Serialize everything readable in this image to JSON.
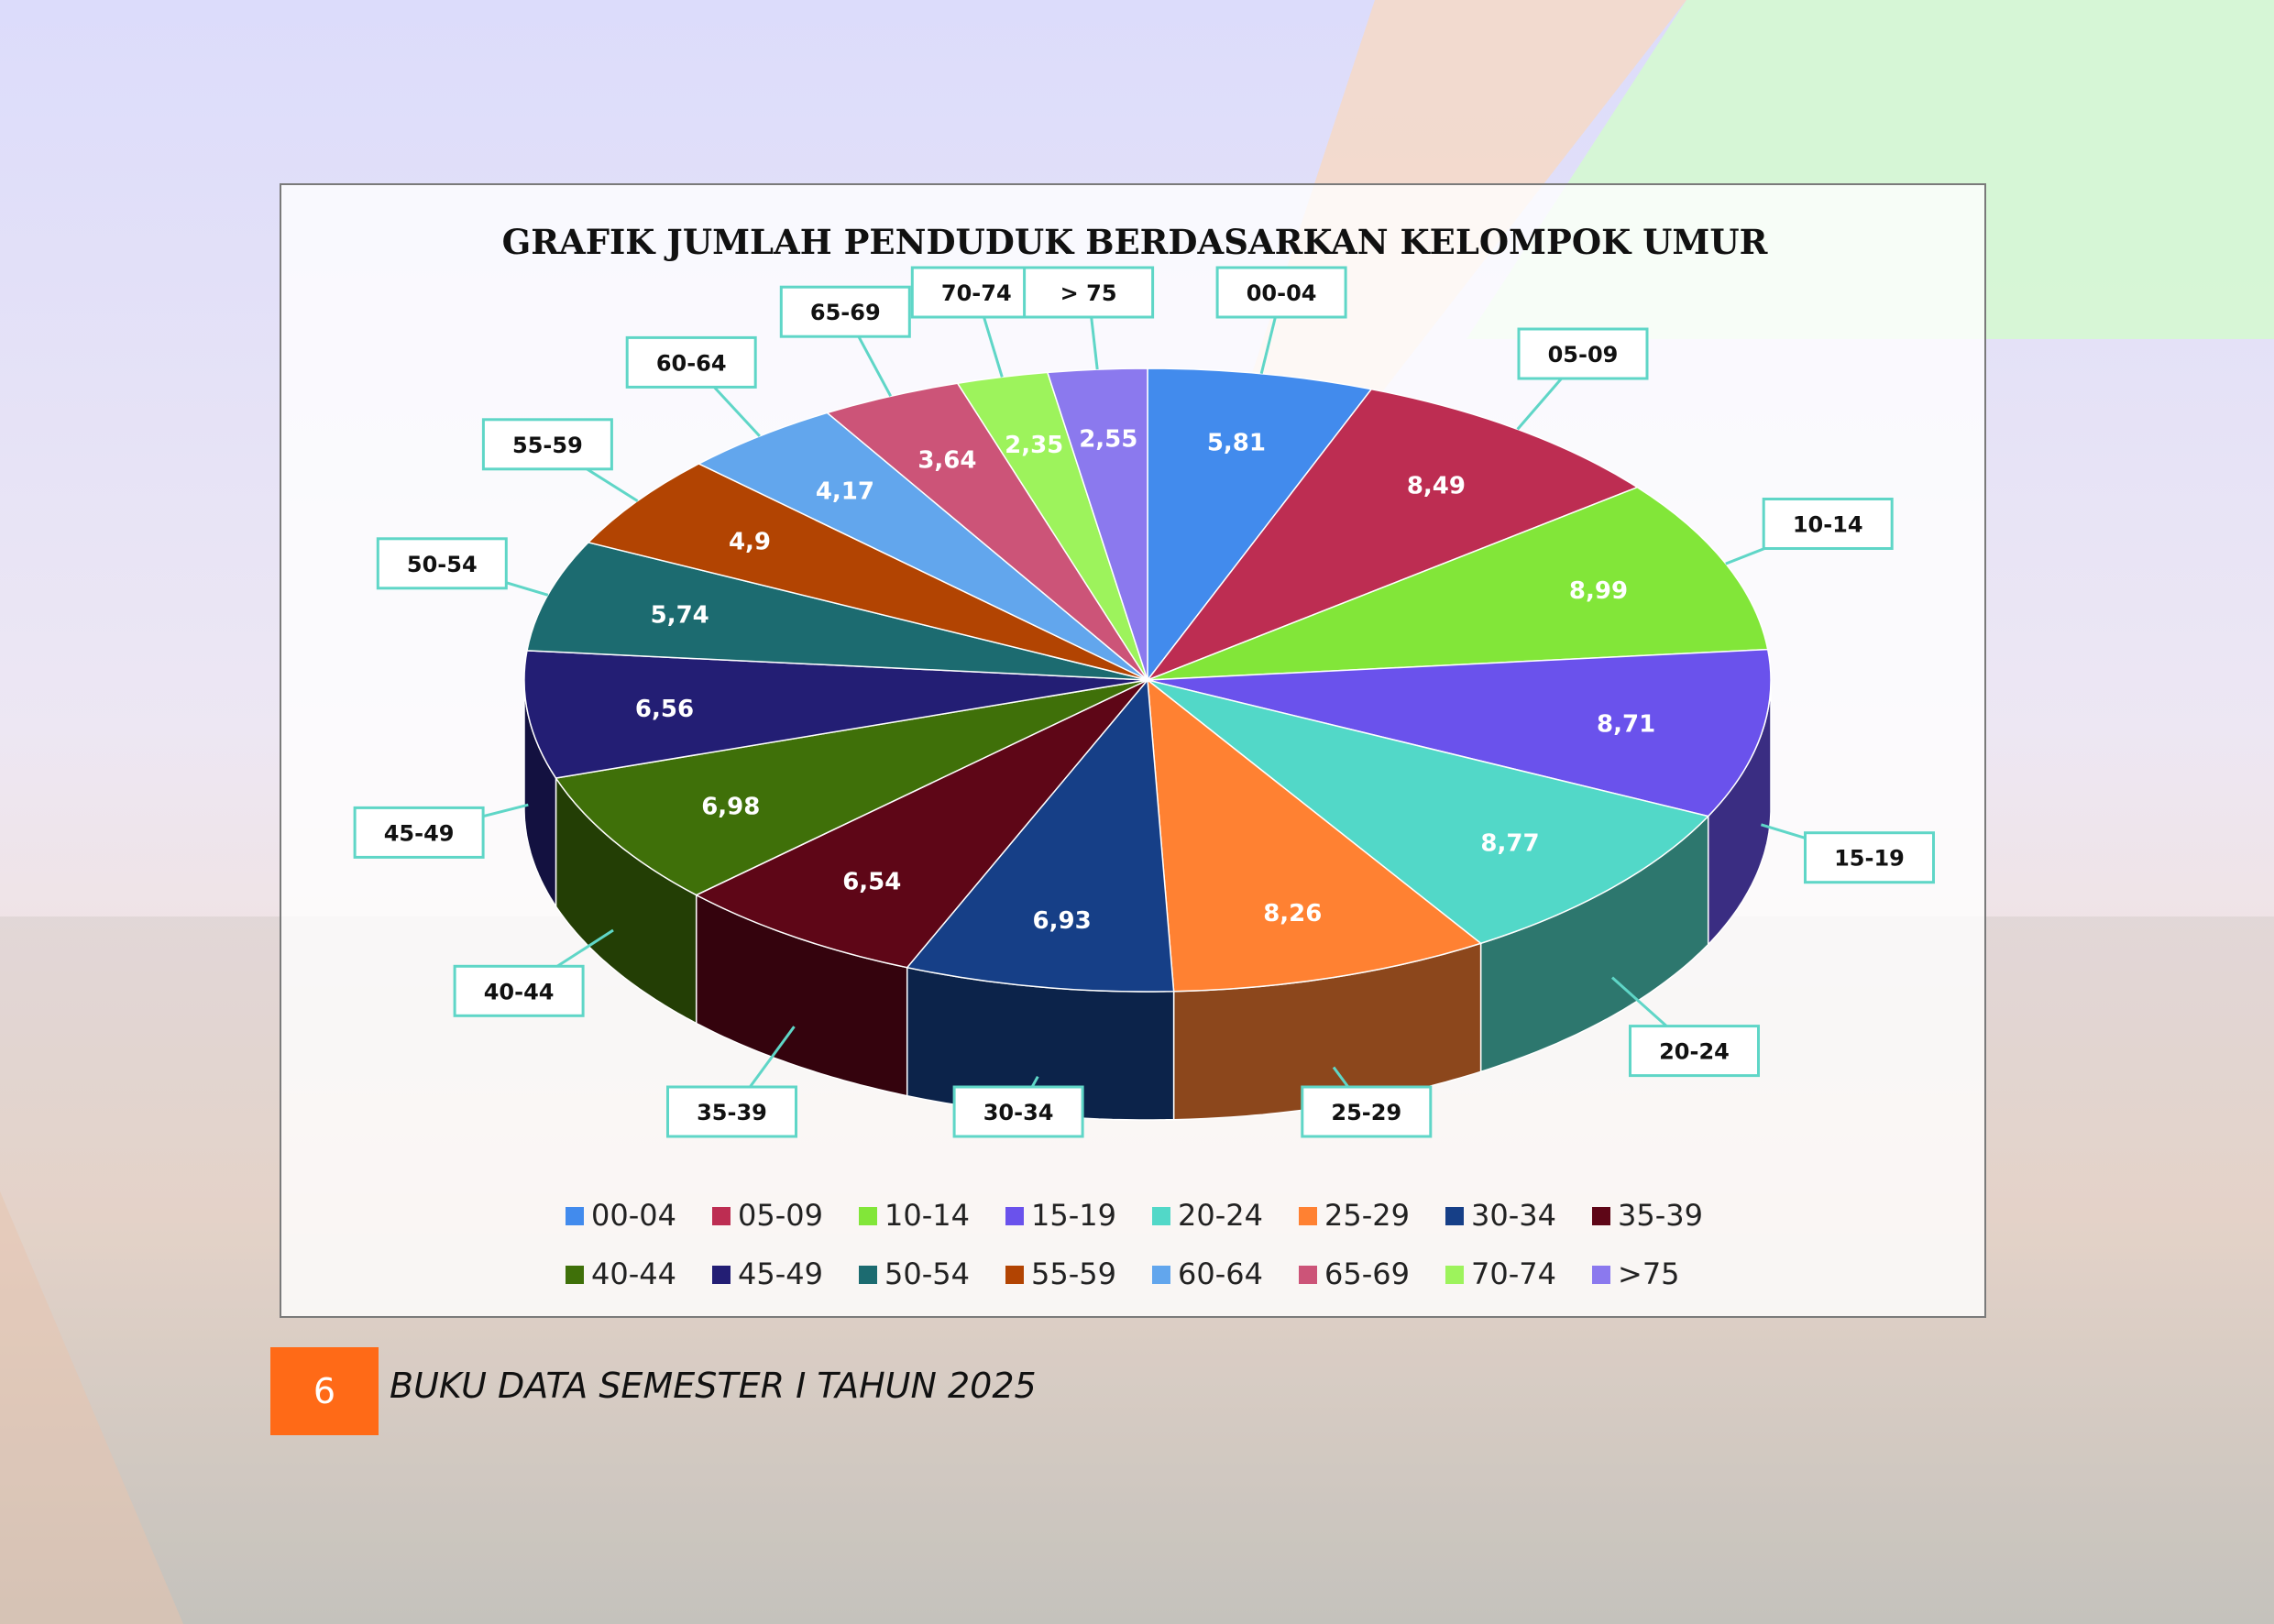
{
  "chart_data": {
    "type": "pie",
    "title": "GRAFIK JUMLAH PENDUDUK BERDASARKAN KELOMPOK UMUR",
    "categories": [
      "00-04",
      "05-09",
      "10-14",
      "15-19",
      "20-24",
      "25-29",
      "30-34",
      "35-39",
      "40-44",
      "45-49",
      "50-54",
      "55-59",
      "60-64",
      "65-69",
      "70-74",
      "> 75"
    ],
    "values": [
      5.81,
      8.49,
      8.99,
      8.71,
      8.77,
      8.26,
      6.93,
      6.54,
      6.98,
      6.56,
      5.74,
      4.9,
      4.17,
      3.64,
      2.35,
      2.55
    ],
    "value_labels": [
      "5,81",
      "8,49",
      "8,99",
      "8,71",
      "8,77",
      "8,26",
      "6,93",
      "6,54",
      "6,98",
      "6,56",
      "5,74",
      "4,9",
      "4,17",
      "3,64",
      "2,35",
      "2,55"
    ],
    "legend_labels": [
      "00-04",
      "05-09",
      "10-14",
      "15-19",
      "20-24",
      "25-29",
      "30-34",
      "35-39",
      "40-44",
      "45-49",
      "50-54",
      "55-59",
      "60-64",
      "65-69",
      "70-74",
      ">75"
    ],
    "colors": [
      "#428bed",
      "#bd2d52",
      "#82e639",
      "#6a52ec",
      "#52d8c8",
      "#ff8132",
      "#163f87",
      "#5e0617",
      "#3f7009",
      "#231e74",
      "#1c6b70",
      "#b24402",
      "#62a6ed",
      "#cc5478",
      "#9df35c",
      "#8b79ee"
    ],
    "label_color": "#ffffff",
    "callout_border_color": "#5fd6c7",
    "legend_position": "bottom",
    "style": "3d-pie"
  },
  "footer": {
    "page_number": "6",
    "text": "BUKU DATA SEMESTER I TAHUN 2025",
    "page_number_color": "#ff6a17"
  }
}
